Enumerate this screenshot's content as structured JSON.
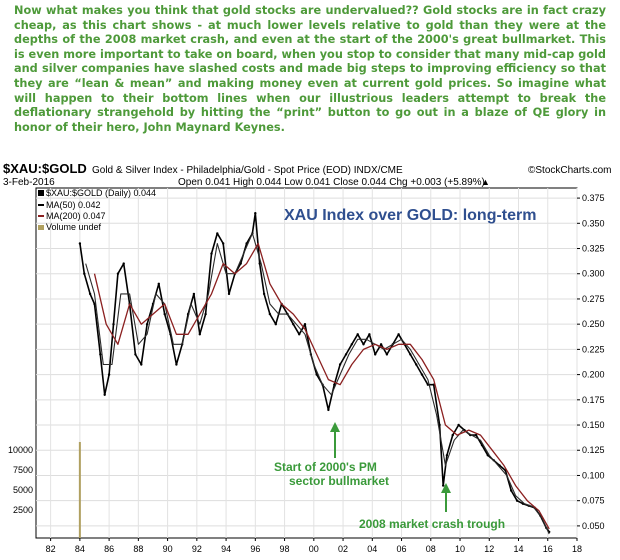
{
  "intro_text": "Now what makes you think that gold stocks are undervalued?? Gold stocks are in fact crazy cheap, as this chart shows - at much lower levels relative to gold than they were at the depths of the 2008 market crash, and even at the start of the 2000's great bullmarket. This is even more important to take on board, when you stop to consider that many mid-cap gold and silver companies have slashed costs and made big steps to improving efficiency so that they are “lean & mean” and making money even at current gold prices. So imagine what will happen to their bottom lines when our illustrious leaders attempt to break the deflationary strangehold by hitting the “print” button to go out in a blaze of QE glory in honor of their hero, John Maynard Keynes.",
  "header": {
    "symbol": "$XAU:$GOLD",
    "description": "Gold & Silver Index - Philadelphia/Gold - Spot Price (EOD) INDX/CME",
    "copyright": "©StockCharts.com",
    "date": "3-Feb-2016",
    "ohlc": "Open 0.041  High 0.044  Low 0.041  Close 0.044  Chg +0.003 (+5.89%)",
    "chg_arrow": "▲"
  },
  "legend": [
    {
      "label": "$XAU:$GOLD (Daily) 0.044",
      "color": "#000000"
    },
    {
      "label": "MA(50) 0.042",
      "color": "#2b2b2b"
    },
    {
      "label": "MA(200) 0.047",
      "color": "#8b2020"
    },
    {
      "label": "Volume undef",
      "color": "#9a8a5a"
    }
  ],
  "chart_title": "XAU Index over GOLD: long-term",
  "annotations": [
    {
      "text": [
        "Start of 2000's PM",
        "sector bullmarket"
      ],
      "x": 2001.0,
      "y": 0.172
    },
    {
      "text": [
        "2008 market crash trough"
      ],
      "x": 2008.9,
      "y": 0.091
    }
  ],
  "colors": {
    "price": "#000000",
    "ma50": "#2b2b2b",
    "ma200": "#8b2020",
    "annotation": "#3a9a3a",
    "title": "#2f4f8f",
    "volume": "#b0a060"
  },
  "chart_data": {
    "type": "line",
    "title": "XAU Index over GOLD: long-term",
    "x_ticks": [
      "82",
      "84",
      "86",
      "88",
      "90",
      "92",
      "94",
      "96",
      "98",
      "00",
      "02",
      "04",
      "06",
      "08",
      "10",
      "12",
      "14",
      "16",
      "18"
    ],
    "xlim": [
      1981,
      2018
    ],
    "y_ticks": [
      "0.050",
      "0.075",
      "0.100",
      "0.125",
      "0.150",
      "0.175",
      "0.200",
      "0.225",
      "0.250",
      "0.275",
      "0.300",
      "0.325",
      "0.350",
      "0.375"
    ],
    "ylim": [
      0.038,
      0.385
    ],
    "volume_ticks": [
      "2500",
      "5000",
      "7500",
      "10000"
    ],
    "volume_bar": {
      "x": 1984.0,
      "value": 11000
    },
    "series": [
      {
        "name": "$XAU:$GOLD (Daily)",
        "x": [
          1984.0,
          1984.3,
          1984.7,
          1985.0,
          1985.4,
          1985.7,
          1986.0,
          1986.3,
          1986.6,
          1987.0,
          1987.4,
          1987.8,
          1988.2,
          1988.6,
          1989.0,
          1989.4,
          1989.8,
          1990.2,
          1990.6,
          1991.0,
          1991.4,
          1991.8,
          1992.2,
          1992.6,
          1993.0,
          1993.4,
          1993.8,
          1994.2,
          1994.6,
          1995.0,
          1995.4,
          1995.8,
          1996.0,
          1996.3,
          1996.6,
          1997.0,
          1997.4,
          1997.8,
          1998.2,
          1998.6,
          1999.0,
          1999.4,
          1999.8,
          2000.2,
          2000.6,
          2001.0,
          2001.4,
          2001.8,
          2002.2,
          2002.6,
          2003.0,
          2003.4,
          2003.8,
          2004.2,
          2004.6,
          2005.0,
          2005.4,
          2005.8,
          2006.2,
          2006.6,
          2007.0,
          2007.4,
          2007.8,
          2008.2,
          2008.6,
          2008.85,
          2009.1,
          2009.5,
          2009.9,
          2010.3,
          2010.7,
          2011.1,
          2011.5,
          2011.9,
          2012.3,
          2012.7,
          2013.1,
          2013.5,
          2013.9,
          2014.3,
          2014.7,
          2015.1,
          2015.5,
          2015.9,
          2016.1
        ],
        "values": [
          0.33,
          0.3,
          0.28,
          0.27,
          0.22,
          0.18,
          0.2,
          0.25,
          0.3,
          0.31,
          0.27,
          0.22,
          0.21,
          0.25,
          0.27,
          0.29,
          0.26,
          0.24,
          0.21,
          0.23,
          0.26,
          0.28,
          0.24,
          0.26,
          0.32,
          0.34,
          0.33,
          0.28,
          0.3,
          0.31,
          0.33,
          0.34,
          0.36,
          0.31,
          0.28,
          0.26,
          0.25,
          0.27,
          0.26,
          0.25,
          0.24,
          0.25,
          0.22,
          0.2,
          0.19,
          0.165,
          0.19,
          0.21,
          0.22,
          0.23,
          0.24,
          0.23,
          0.24,
          0.22,
          0.23,
          0.22,
          0.23,
          0.24,
          0.23,
          0.22,
          0.21,
          0.2,
          0.19,
          0.19,
          0.15,
          0.09,
          0.12,
          0.14,
          0.15,
          0.145,
          0.14,
          0.14,
          0.13,
          0.12,
          0.115,
          0.11,
          0.105,
          0.085,
          0.075,
          0.072,
          0.07,
          0.068,
          0.06,
          0.048,
          0.044
        ]
      },
      {
        "name": "MA(50)",
        "x": [
          1984.4,
          1985.0,
          1985.6,
          1986.2,
          1986.8,
          1987.4,
          1988.0,
          1988.6,
          1989.2,
          1989.8,
          1990.4,
          1991.0,
          1991.6,
          1992.2,
          1992.8,
          1993.4,
          1994.0,
          1994.6,
          1995.2,
          1995.8,
          1996.4,
          1997.0,
          1997.6,
          1998.2,
          1998.8,
          1999.4,
          2000.0,
          2000.6,
          2001.2,
          2001.8,
          2002.4,
          2003.0,
          2003.6,
          2004.2,
          2004.8,
          2005.4,
          2006.0,
          2006.6,
          2007.2,
          2007.8,
          2008.4,
          2009.0,
          2009.6,
          2010.2,
          2010.8,
          2011.4,
          2012.0,
          2012.6,
          2013.2,
          2013.8,
          2014.4,
          2015.0,
          2015.6,
          2016.1
        ],
        "values": [
          0.31,
          0.28,
          0.21,
          0.21,
          0.28,
          0.28,
          0.23,
          0.24,
          0.28,
          0.27,
          0.23,
          0.23,
          0.27,
          0.25,
          0.28,
          0.33,
          0.3,
          0.3,
          0.32,
          0.34,
          0.31,
          0.27,
          0.26,
          0.26,
          0.25,
          0.24,
          0.21,
          0.19,
          0.18,
          0.2,
          0.22,
          0.235,
          0.235,
          0.23,
          0.225,
          0.23,
          0.235,
          0.225,
          0.21,
          0.195,
          0.16,
          0.11,
          0.135,
          0.145,
          0.14,
          0.135,
          0.12,
          0.11,
          0.1,
          0.08,
          0.072,
          0.069,
          0.058,
          0.042
        ]
      },
      {
        "name": "MA(200)",
        "x": [
          1985.0,
          1985.8,
          1986.6,
          1987.4,
          1988.2,
          1989.0,
          1989.8,
          1990.6,
          1991.4,
          1992.2,
          1993.0,
          1993.8,
          1994.6,
          1995.4,
          1996.2,
          1997.0,
          1997.8,
          1998.6,
          1999.4,
          2000.2,
          2001.0,
          2001.8,
          2002.6,
          2003.4,
          2004.2,
          2005.0,
          2005.8,
          2006.6,
          2007.4,
          2008.2,
          2009.0,
          2009.8,
          2010.6,
          2011.4,
          2012.2,
          2013.0,
          2013.8,
          2014.6,
          2015.4,
          2016.1
        ],
        "values": [
          0.3,
          0.25,
          0.23,
          0.27,
          0.25,
          0.26,
          0.27,
          0.24,
          0.24,
          0.26,
          0.28,
          0.31,
          0.3,
          0.31,
          0.33,
          0.29,
          0.27,
          0.26,
          0.245,
          0.22,
          0.195,
          0.19,
          0.21,
          0.225,
          0.23,
          0.225,
          0.23,
          0.23,
          0.215,
          0.195,
          0.15,
          0.14,
          0.145,
          0.14,
          0.125,
          0.11,
          0.09,
          0.075,
          0.065,
          0.047
        ]
      }
    ]
  }
}
